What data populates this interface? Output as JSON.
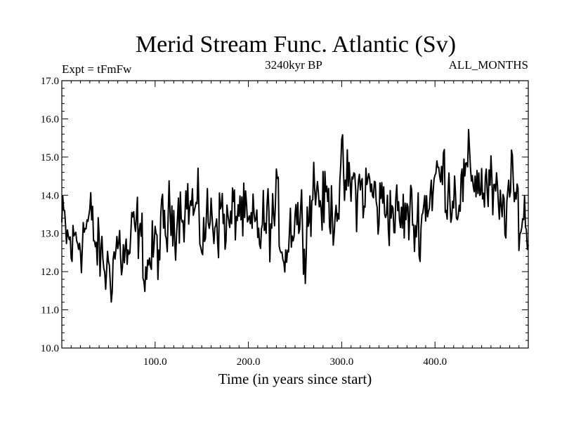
{
  "chart_data": {
    "type": "line",
    "title": "Merid Stream Func. Atlantic (Sv)",
    "left_annotation": "Expt = tFmFw",
    "center_annotation": "3240kyr BP",
    "right_annotation": "ALL_MONTHS",
    "xlabel": "Time (in years since start)",
    "ylabel": "",
    "xlim": [
      0,
      500
    ],
    "ylim": [
      10.0,
      17.0
    ],
    "x_ticks": [
      100,
      200,
      300,
      400
    ],
    "x_tick_labels": [
      "100.0",
      "200.0",
      "300.0",
      "400.0"
    ],
    "y_ticks": [
      10,
      11,
      12,
      13,
      14,
      15,
      16,
      17
    ],
    "y_tick_labels": [
      "10.0",
      "11.0",
      "12.0",
      "13.0",
      "14.0",
      "15.0",
      "16.0",
      "17.0"
    ],
    "series": [
      {
        "name": "Merid Stream Func. Atlantic",
        "x": [
          0,
          10,
          20,
          30,
          40,
          50,
          60,
          70,
          80,
          90,
          100,
          110,
          120,
          130,
          140,
          150,
          160,
          170,
          180,
          190,
          200,
          210,
          220,
          230,
          240,
          250,
          260,
          270,
          280,
          290,
          300,
          310,
          320,
          330,
          340,
          350,
          360,
          370,
          380,
          390,
          400,
          410,
          420,
          430,
          440,
          450,
          460,
          470,
          480,
          490,
          500
        ],
        "values": [
          13.2,
          12.6,
          13.0,
          13.3,
          12.4,
          12.0,
          12.7,
          12.3,
          13.1,
          12.2,
          12.5,
          13.0,
          13.6,
          13.9,
          13.7,
          13.0,
          13.4,
          13.6,
          13.1,
          13.8,
          12.9,
          13.1,
          13.2,
          13.5,
          12.6,
          13.7,
          13.1,
          14.3,
          13.8,
          13.7,
          14.3,
          14.2,
          14.1,
          14.2,
          13.7,
          13.9,
          13.3,
          13.5,
          13.2,
          13.8,
          14.4,
          14.5,
          14.1,
          14.2,
          14.7,
          14.3,
          14.1,
          13.4,
          14.1,
          13.6,
          13.2
        ]
      }
    ]
  }
}
